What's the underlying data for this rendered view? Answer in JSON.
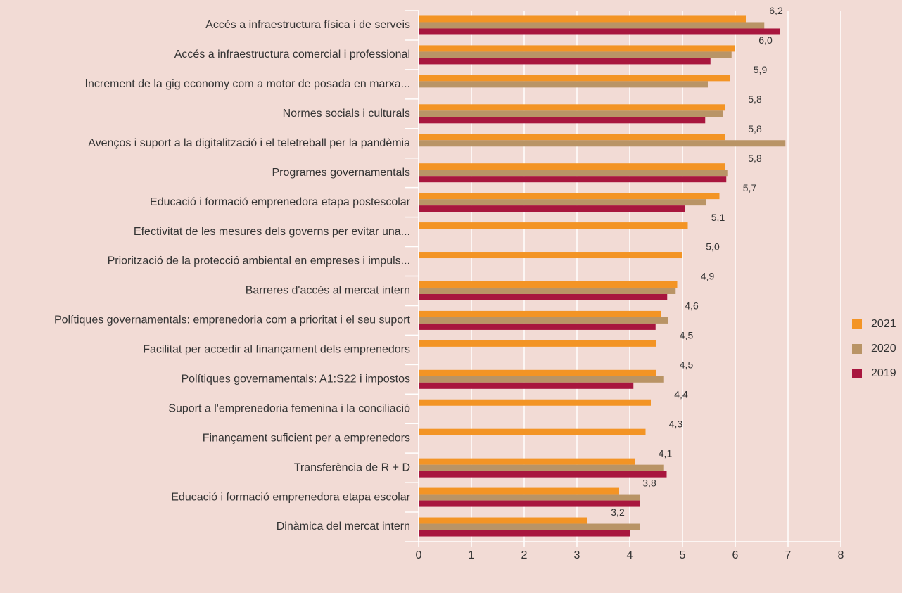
{
  "chart_data": {
    "type": "bar",
    "orientation": "horizontal",
    "categories": [
      "Accés a infraestructura física i de serveis",
      "Accés a infraestructura comercial i professional",
      "Increment de la gig economy com a motor de posada en marxa...",
      "Normes socials i culturals",
      "Avenços i suport a la digitalització i el teletreball per la pandèmia",
      "Programes governamentals",
      "Educació i formació emprenedora etapa postescolar",
      "Efectivitat de les mesures dels governs per evitar una...",
      "Priorització de la protecció ambiental en empreses i impuls...",
      "Barreres d'accés al mercat intern",
      "Polítiques governamentals: emprenedoria com a prioritat i el seu suport",
      "Facilitat per accedir al finançament dels emprenedors",
      "Polítiques governamentals: A1:S22 i impostos",
      "Suport a l'emprenedoria femenina i la conciliació",
      "Finançament suficient per a emprenedors",
      "Transferència de R + D",
      "Educació i formació emprenedora etapa escolar",
      "Dinàmica del mercat intern"
    ],
    "series": [
      {
        "name": "2021",
        "color": "#f39425",
        "values": [
          6.2,
          6.0,
          5.9,
          5.8,
          5.8,
          5.8,
          5.7,
          5.1,
          5.0,
          4.9,
          4.6,
          4.5,
          4.5,
          4.4,
          4.3,
          4.1,
          3.8,
          3.2
        ],
        "value_labels": [
          "6,2",
          "6,0",
          "5,9",
          "5,8",
          "5,8",
          "5,8",
          "5,7",
          "5,1",
          "5,0",
          "4,9",
          "4,6",
          "4,5",
          "4,5",
          "4,4",
          "4,3",
          "4,1",
          "3,8",
          "3,2"
        ]
      },
      {
        "name": "2020",
        "color": "#b99466",
        "values": [
          6.55,
          5.93,
          5.48,
          5.77,
          6.95,
          5.85,
          5.45,
          null,
          null,
          4.87,
          4.73,
          null,
          4.65,
          null,
          null,
          4.65,
          4.2,
          4.2
        ]
      },
      {
        "name": "2019",
        "color": "#a8163e",
        "values": [
          6.85,
          5.53,
          null,
          5.43,
          null,
          5.83,
          5.05,
          null,
          null,
          4.71,
          4.49,
          null,
          4.07,
          null,
          null,
          4.7,
          4.2,
          4.0
        ]
      }
    ],
    "xlim": [
      0,
      8
    ],
    "xticks": [
      0,
      1,
      2,
      3,
      4,
      5,
      6,
      7,
      8
    ],
    "grid": true,
    "legend": "right"
  }
}
